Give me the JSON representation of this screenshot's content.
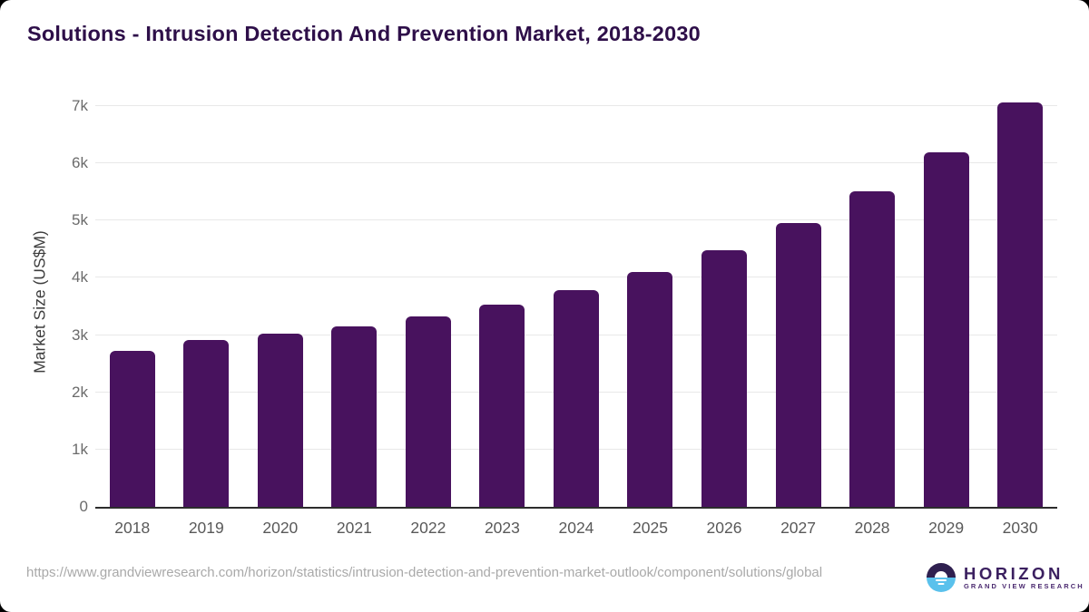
{
  "page": {
    "title": "Solutions - Intrusion Detection And Prevention Market, 2018-2030",
    "source_url": "https://www.grandviewresearch.com/horizon/statistics/intrusion-detection-and-prevention-market-outlook/component/solutions/global",
    "logo": {
      "wordmark": "HORIZON",
      "subtitle": "GRAND VIEW RESEARCH"
    }
  },
  "chart_data": {
    "type": "bar",
    "title": "Solutions - Intrusion Detection And Prevention Market, 2018-2030",
    "xlabel": "",
    "ylabel": "Market Size (US$M)",
    "categories": [
      "2018",
      "2019",
      "2020",
      "2021",
      "2022",
      "2023",
      "2024",
      "2025",
      "2026",
      "2027",
      "2028",
      "2029",
      "2030"
    ],
    "values": [
      2730,
      2920,
      3020,
      3150,
      3320,
      3530,
      3790,
      4100,
      4490,
      4950,
      5510,
      6200,
      7060
    ],
    "ylim": [
      0,
      7000
    ],
    "yticks": [
      0,
      1000,
      2000,
      3000,
      4000,
      5000,
      6000,
      7000
    ],
    "ytick_labels": [
      "0",
      "1k",
      "2k",
      "3k",
      "4k",
      "5k",
      "6k",
      "7k"
    ],
    "grid": true,
    "legend": false,
    "colors": {
      "bar": "#48125e",
      "title_text": "#2e0f49",
      "axis_label_text": "#3d3d3d",
      "tick_text": "#6b6b6b",
      "gridline": "#e8e8e8",
      "baseline": "#2d2d2d",
      "url_text": "#a9a9a9",
      "logo_purple": "#2f2050",
      "logo_blue": "#5ac1ec"
    }
  }
}
